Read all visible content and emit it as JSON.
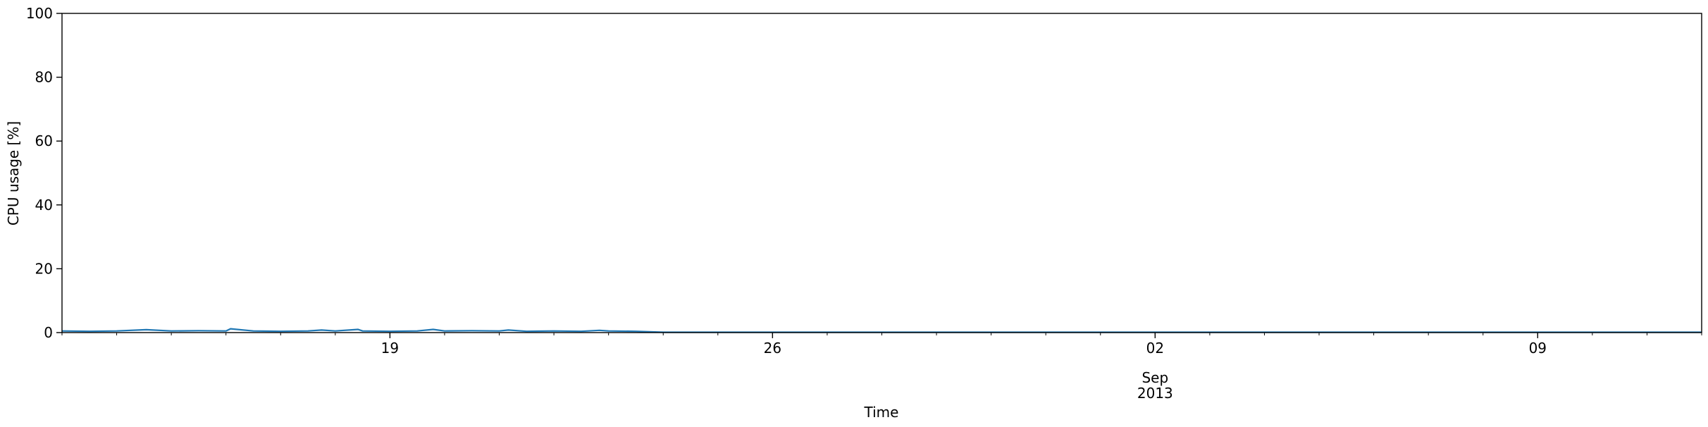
{
  "chart_data": {
    "type": "line",
    "title": "",
    "xlabel": "Time",
    "ylabel": "CPU usage [%]",
    "ylim": [
      0,
      100
    ],
    "xlim": [
      "2013-08-13",
      "2013-09-12"
    ],
    "grid": false,
    "legend": "none",
    "line_color": "#1f77b4",
    "y_ticks": [
      0,
      20,
      40,
      60,
      80,
      100
    ],
    "x_ticks": [
      {
        "date": "2013-08-19",
        "label": "19"
      },
      {
        "date": "2013-08-26",
        "label": "26"
      },
      {
        "date": "2013-09-02",
        "label": "02"
      },
      {
        "date": "2013-09-09",
        "label": "09"
      }
    ],
    "x_secondary_label": {
      "date": "2013-09-02",
      "month": "Sep",
      "year": "2013"
    },
    "series": [
      {
        "x": [
          "2013-08-13 00:00",
          "2013-08-13 12:00",
          "2013-08-14 00:00",
          "2013-08-14 13:00",
          "2013-08-15 00:00",
          "2013-08-15 12:00",
          "2013-08-16 00:00",
          "2013-08-16 02:00",
          "2013-08-16 12:00",
          "2013-08-17 00:00",
          "2013-08-17 12:00",
          "2013-08-17 18:00",
          "2013-08-18 00:00",
          "2013-08-18 10:00",
          "2013-08-18 12:00",
          "2013-08-19 00:00",
          "2013-08-19 12:00",
          "2013-08-19 19:00",
          "2013-08-20 00:00",
          "2013-08-20 12:00",
          "2013-08-21 00:00",
          "2013-08-21 04:00",
          "2013-08-21 12:00",
          "2013-08-22 00:00",
          "2013-08-22 12:00",
          "2013-08-22 20:00",
          "2013-08-23 00:00",
          "2013-08-23 12:00",
          "2013-08-24 00:00",
          "2013-09-12 00:00"
        ],
        "values": [
          0.5,
          0.4,
          0.5,
          0.9,
          0.5,
          0.6,
          0.5,
          1.2,
          0.5,
          0.4,
          0.5,
          0.8,
          0.5,
          1.0,
          0.5,
          0.4,
          0.5,
          1.0,
          0.5,
          0.6,
          0.5,
          0.8,
          0.4,
          0.5,
          0.4,
          0.7,
          0.5,
          0.4,
          0.1,
          0.1
        ]
      }
    ]
  }
}
